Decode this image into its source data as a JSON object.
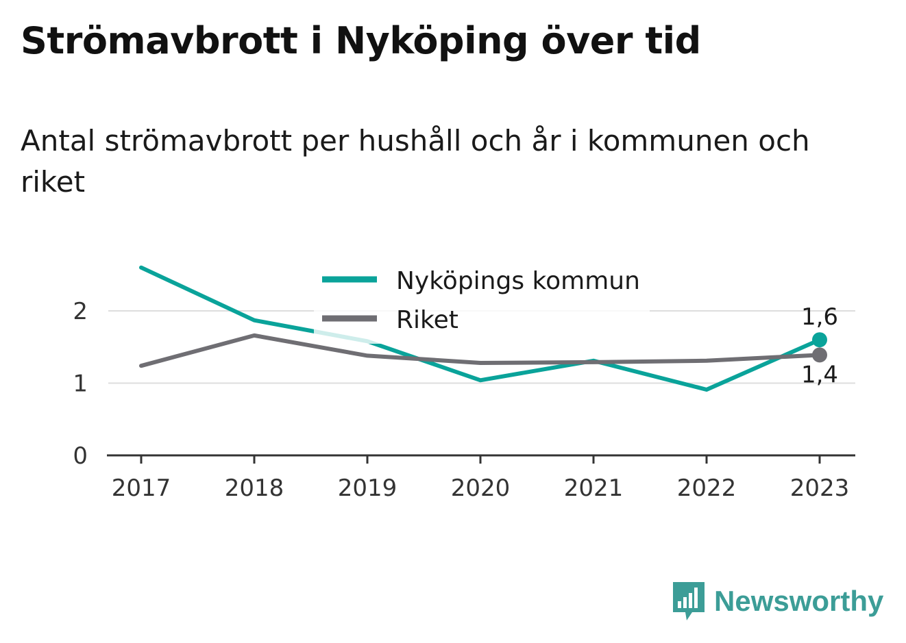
{
  "header": {
    "title": "Strömavbrott i Nyköping över tid",
    "subtitle": "Antal strömavbrott per hushåll och år i kommunen och riket"
  },
  "colors": {
    "series_nykoping": "#0aa39a",
    "series_riket": "#6f6e73",
    "grid": "#dddddd",
    "axis": "#333333",
    "brand": "#3c9d97"
  },
  "chart_data": {
    "type": "line",
    "x": [
      "2017",
      "2018",
      "2019",
      "2020",
      "2021",
      "2022",
      "2023"
    ],
    "series": [
      {
        "name": "Nyköpings kommun",
        "values": [
          2.6,
          1.87,
          1.58,
          1.04,
          1.31,
          0.91,
          1.6
        ],
        "end_label": "1,6"
      },
      {
        "name": "Riket",
        "values": [
          1.24,
          1.66,
          1.38,
          1.28,
          1.29,
          1.31,
          1.39
        ],
        "end_label": "1,4"
      }
    ],
    "yticks": [
      "0",
      "1",
      "2"
    ],
    "ylim": [
      0,
      2.6
    ],
    "grid": true,
    "legend_position": "top-center"
  },
  "brand": {
    "name": "Newsworthy",
    "icon": "bar-chart-speech-bubble-icon"
  }
}
